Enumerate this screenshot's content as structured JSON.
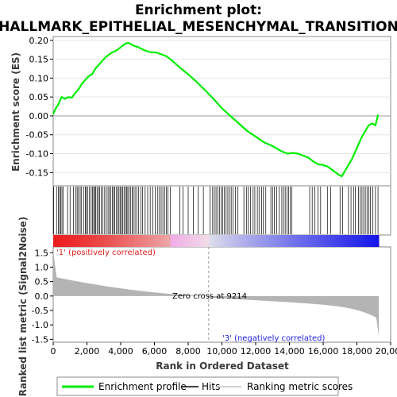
{
  "chart_data": {
    "type": "line",
    "title_line1": "Enrichment plot:",
    "title_line2": "HALLMARK_EPITHELIAL_MESENCHYMAL_TRANSITION",
    "xlabel": "Rank in Ordered Dataset",
    "ylabel_top": "Enrichment score (ES)",
    "ylabel_bottom": "Ranked list metric (Signal2Noise)",
    "xlim": [
      0,
      20000
    ],
    "x_ticks": [
      0,
      2000,
      4000,
      6000,
      8000,
      10000,
      12000,
      14000,
      16000,
      18000,
      20000
    ],
    "x_tick_labels": [
      "0",
      "2,000",
      "4,000",
      "6,000",
      "8,000",
      "10,000",
      "12,000",
      "14,000",
      "16,000",
      "18,000",
      "20,000"
    ],
    "es_ylim": [
      -0.185,
      0.21
    ],
    "es_ticks": [
      0.2,
      0.15,
      0.1,
      0.05,
      0.0,
      -0.05,
      -0.1,
      -0.15
    ],
    "es_tick_labels": [
      "0.20",
      "0.15",
      "0.10",
      "0.05",
      "0.00",
      "-0.05",
      "-0.10",
      "-0.15"
    ],
    "metric_ylim": [
      -1.6,
      1.7
    ],
    "metric_ticks": [
      1.5,
      1.0,
      0.5,
      0.0,
      -0.5,
      -1.0,
      -1.5
    ],
    "metric_tick_labels": [
      "1.5",
      "1.0",
      "0.5",
      "0.0",
      "-0.5",
      "-1.0",
      "-1.5"
    ],
    "total_genes": 19300,
    "zero_cross": 9214,
    "zero_cross_label": "Zero cross at 9214",
    "pos_label": "'1' (positively correlated)",
    "neg_label": "'3' (negatively correlated)",
    "enrichment_profile": {
      "name": "Enrichment profile",
      "color": "#00ee00",
      "x": [
        0,
        150,
        300,
        500,
        700,
        900,
        1100,
        1300,
        1500,
        1700,
        1900,
        2100,
        2300,
        2500,
        2700,
        2900,
        3100,
        3300,
        3500,
        3700,
        3900,
        4100,
        4300,
        4450,
        4600,
        4800,
        5000,
        5200,
        5500,
        5800,
        6100,
        6400,
        6700,
        7000,
        7500,
        8000,
        8500,
        9000,
        9500,
        10000,
        10500,
        11000,
        11500,
        12000,
        12500,
        13000,
        13300,
        13600,
        13900,
        14200,
        14500,
        14800,
        15100,
        15400,
        15700,
        16000,
        16300,
        16600,
        16900,
        17100,
        17300,
        17500,
        17700,
        17900,
        18100,
        18300,
        18500,
        18700,
        18900,
        19100,
        19250
      ],
      "y": [
        0.005,
        0.02,
        0.03,
        0.05,
        0.045,
        0.05,
        0.048,
        0.06,
        0.07,
        0.085,
        0.095,
        0.105,
        0.11,
        0.125,
        0.135,
        0.145,
        0.155,
        0.162,
        0.168,
        0.172,
        0.178,
        0.185,
        0.192,
        0.193,
        0.19,
        0.185,
        0.183,
        0.178,
        0.172,
        0.168,
        0.168,
        0.163,
        0.158,
        0.148,
        0.128,
        0.11,
        0.09,
        0.068,
        0.045,
        0.02,
        0.0,
        -0.02,
        -0.04,
        -0.055,
        -0.07,
        -0.08,
        -0.088,
        -0.095,
        -0.1,
        -0.098,
        -0.1,
        -0.105,
        -0.11,
        -0.12,
        -0.128,
        -0.13,
        -0.135,
        -0.145,
        -0.155,
        -0.16,
        -0.145,
        -0.13,
        -0.115,
        -0.095,
        -0.075,
        -0.055,
        -0.04,
        -0.025,
        -0.02,
        -0.025,
        0.003
      ]
    },
    "hits_legend": "Hits",
    "metric_legend": "Ranking metric scores",
    "hit_positions": [
      30,
      200,
      310,
      380,
      450,
      520,
      600,
      850,
      1000,
      1200,
      1350,
      1420,
      1500,
      1600,
      1680,
      1800,
      1900,
      1950,
      2050,
      2150,
      2250,
      2330,
      2400,
      2460,
      2520,
      2600,
      2680,
      2750,
      2850,
      2950,
      3050,
      3150,
      3250,
      3330,
      3420,
      3500,
      3580,
      3650,
      3750,
      3830,
      3900,
      3980,
      4050,
      4120,
      4200,
      4280,
      4350,
      4420,
      4500,
      4580,
      4680,
      4750,
      4850,
      4950,
      5050,
      5200,
      5300,
      5450,
      5600,
      5750,
      5900,
      6050,
      6200,
      6300,
      6400,
      6500,
      6600,
      6700,
      6800,
      6950,
      7500,
      7700,
      8000,
      8300,
      8600,
      8900,
      9300,
      9450,
      9550,
      9650,
      9750,
      9850,
      9950,
      10050,
      10150,
      10250,
      10350,
      10450,
      10550,
      10650,
      10800,
      10950,
      11300,
      11450,
      11550,
      11700,
      11850,
      11950,
      12100,
      12200,
      12350,
      12450,
      12600,
      12900,
      13000,
      13100,
      13250,
      13400,
      13550,
      13650,
      13750,
      13850,
      13950,
      14050,
      14150,
      15200,
      15350,
      15500,
      15700,
      15850,
      16250,
      16450,
      17000,
      17150,
      17500,
      17650,
      17800,
      17900,
      18100,
      18200,
      18300,
      18400,
      18500,
      18600,
      18700,
      18800,
      18950,
      19100,
      19250
    ]
  }
}
